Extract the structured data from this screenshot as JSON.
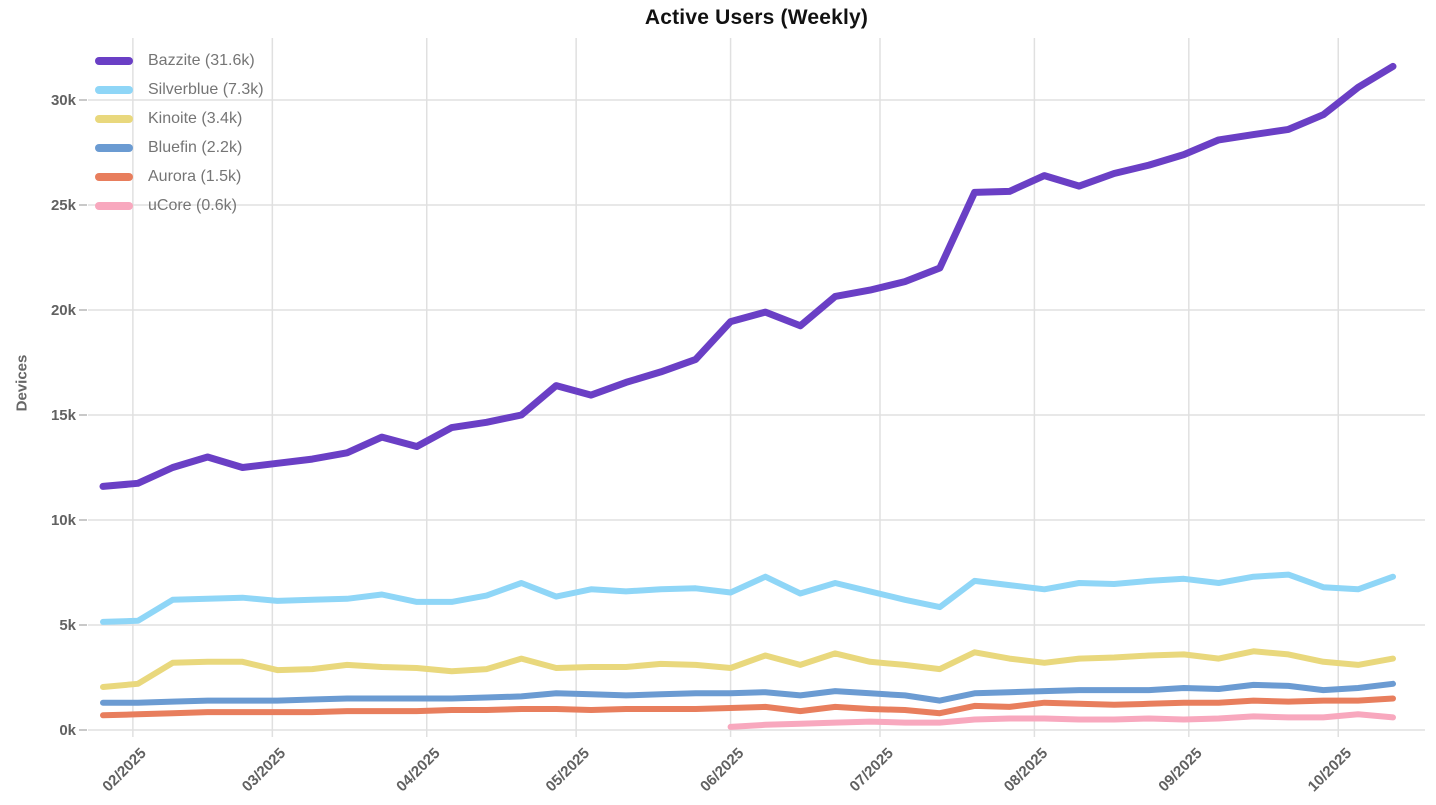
{
  "chart_data": {
    "type": "line",
    "title": "Active Users (Weekly)",
    "ylabel": "Devices",
    "xlabel": "",
    "grid": true,
    "legend_position": "top-left",
    "ylim": [
      0,
      32.95
    ],
    "y_unit": "k devices",
    "x_unit": "week (weekly samples, late Jan 2025 - mid Oct 2025)",
    "y_ticks": [
      {
        "v": 0,
        "label": "0k"
      },
      {
        "v": 5,
        "label": "5k"
      },
      {
        "v": 10,
        "label": "10k"
      },
      {
        "v": 15,
        "label": "15k"
      },
      {
        "v": 20,
        "label": "20k"
      },
      {
        "v": 25,
        "label": "25k"
      },
      {
        "v": 30,
        "label": "30k"
      }
    ],
    "x_ticks": [
      {
        "label": "02/2025",
        "week": 0.857
      },
      {
        "label": "03/2025",
        "week": 4.857
      },
      {
        "label": "04/2025",
        "week": 9.286
      },
      {
        "label": "05/2025",
        "week": 13.571
      },
      {
        "label": "06/2025",
        "week": 18.0
      },
      {
        "label": "07/2025",
        "week": 22.286
      },
      {
        "label": "08/2025",
        "week": 26.714
      },
      {
        "label": "09/2025",
        "week": 31.143
      },
      {
        "label": "10/2025",
        "week": 35.429
      }
    ],
    "series": [
      {
        "name": "Bazzite",
        "legend": "Bazzite (31.6k)",
        "color": "#6A3FC5",
        "start_week": 0,
        "values": [
          11.6,
          11.75,
          12.5,
          13.0,
          12.5,
          12.7,
          12.9,
          13.2,
          13.95,
          13.5,
          14.4,
          14.65,
          15.0,
          16.4,
          15.95,
          16.55,
          17.05,
          17.65,
          19.45,
          19.9,
          19.25,
          20.65,
          20.95,
          21.35,
          22.0,
          25.6,
          25.65,
          26.4,
          25.9,
          26.5,
          26.9,
          27.4,
          28.1,
          28.35,
          28.6,
          29.3,
          30.6,
          31.6
        ]
      },
      {
        "name": "Silverblue",
        "legend": "Silverblue (7.3k)",
        "color": "#8FD6F7",
        "start_week": 0,
        "values": [
          5.15,
          5.2,
          6.2,
          6.25,
          6.3,
          6.15,
          6.2,
          6.25,
          6.45,
          6.1,
          6.1,
          6.4,
          7.0,
          6.35,
          6.7,
          6.6,
          6.7,
          6.75,
          6.55,
          7.3,
          6.5,
          7.0,
          6.6,
          6.2,
          5.85,
          7.1,
          6.9,
          6.7,
          7.0,
          6.95,
          7.1,
          7.2,
          7.0,
          7.3,
          7.4,
          6.8,
          6.7,
          7.3
        ]
      },
      {
        "name": "Kinoite",
        "legend": "Kinoite (3.4k)",
        "color": "#E9D87D",
        "start_week": 0,
        "values": [
          2.05,
          2.2,
          3.2,
          3.25,
          3.25,
          2.85,
          2.9,
          3.1,
          3.0,
          2.95,
          2.8,
          2.9,
          3.4,
          2.95,
          3.0,
          3.0,
          3.15,
          3.1,
          2.95,
          3.55,
          3.1,
          3.65,
          3.25,
          3.1,
          2.9,
          3.7,
          3.4,
          3.2,
          3.4,
          3.45,
          3.55,
          3.6,
          3.4,
          3.75,
          3.6,
          3.25,
          3.1,
          3.4
        ]
      },
      {
        "name": "Bluefin",
        "legend": "Bluefin (2.2k)",
        "color": "#6B9BD2",
        "start_week": 0,
        "values": [
          1.3,
          1.3,
          1.35,
          1.4,
          1.4,
          1.4,
          1.45,
          1.5,
          1.5,
          1.5,
          1.5,
          1.55,
          1.6,
          1.75,
          1.7,
          1.65,
          1.7,
          1.75,
          1.75,
          1.8,
          1.65,
          1.85,
          1.75,
          1.65,
          1.4,
          1.75,
          1.8,
          1.85,
          1.9,
          1.9,
          1.9,
          2.0,
          1.95,
          2.15,
          2.1,
          1.9,
          2.0,
          2.2
        ]
      },
      {
        "name": "Aurora",
        "legend": "Aurora (1.5k)",
        "color": "#E87E5D",
        "start_week": 0,
        "values": [
          0.7,
          0.75,
          0.8,
          0.85,
          0.85,
          0.85,
          0.85,
          0.9,
          0.9,
          0.9,
          0.95,
          0.95,
          1.0,
          1.0,
          0.95,
          1.0,
          1.0,
          1.0,
          1.05,
          1.1,
          0.9,
          1.1,
          1.0,
          0.95,
          0.8,
          1.15,
          1.1,
          1.3,
          1.25,
          1.2,
          1.25,
          1.3,
          1.3,
          1.4,
          1.35,
          1.4,
          1.4,
          1.5
        ]
      },
      {
        "name": "uCore",
        "legend": "uCore (0.6k)",
        "color": "#F8A8BE",
        "start_week": 18,
        "values": [
          0.15,
          0.25,
          0.3,
          0.35,
          0.4,
          0.35,
          0.35,
          0.5,
          0.55,
          0.55,
          0.5,
          0.5,
          0.55,
          0.5,
          0.55,
          0.65,
          0.6,
          0.6,
          0.75,
          0.6
        ]
      }
    ],
    "style": {
      "gridline_color": "#e0e0e0",
      "tick_dash_color": "#c9c9c9",
      "tick_label_color": "#616161",
      "legend_text_color": "#757575",
      "title_color": "#111111",
      "background": "#ffffff"
    }
  }
}
